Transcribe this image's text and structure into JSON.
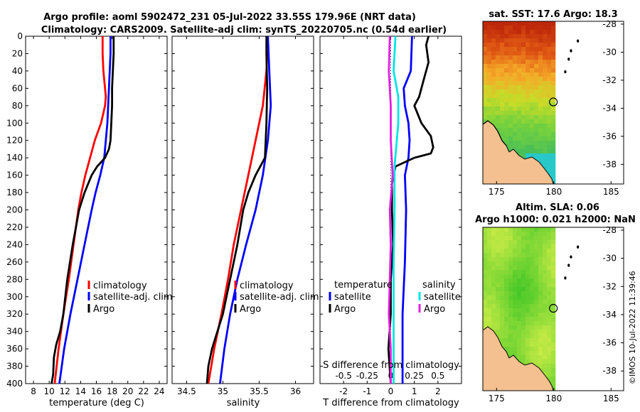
{
  "title_line1": "Argo profile: aoml 5902472_231 05-Jul-2022 33.55S 179.96E (NRT data)",
  "title_line2": "Climatology: CARS2009. Satellite-adj clim: synTS_20220705.nc (0.54d earlier)",
  "watermark": "©IMOS 10-Jul-2022 11:39:46",
  "depth_ticks": [
    "0",
    "20",
    "40",
    "60",
    "80",
    "100",
    "120",
    "140",
    "160",
    "180",
    "200",
    "220",
    "240",
    "260",
    "280",
    "300",
    "320",
    "340",
    "360",
    "380",
    "400"
  ],
  "colors": {
    "red": "#ff0000",
    "blue": "#0000ff",
    "black": "#000000",
    "cyan": "#00e5e5",
    "magenta": "#e020e0"
  },
  "chart_data": [
    {
      "type": "line",
      "id": "temperature",
      "xlabel": "temperature (deg C)",
      "ylabel": "depth",
      "xlim": [
        7,
        25
      ],
      "ylim": [
        400,
        0
      ],
      "xticks": [
        "8",
        "10",
        "12",
        "14",
        "16",
        "18",
        "20",
        "22",
        "24"
      ],
      "xtick_values": [
        8,
        10,
        12,
        14,
        16,
        18,
        20,
        22,
        24
      ],
      "legend": [
        "climatology",
        "satellite-adj. clim",
        "Argo"
      ],
      "series": [
        {
          "name": "climatology",
          "color": "red",
          "depth": [
            0,
            20,
            40,
            60,
            70,
            80,
            100,
            120,
            140,
            160,
            180,
            200,
            240,
            280,
            320,
            360,
            400
          ],
          "values": [
            16.8,
            16.8,
            16.9,
            17.1,
            17.2,
            17.1,
            16.6,
            15.8,
            15.2,
            14.6,
            14.1,
            13.7,
            13.1,
            12.5,
            11.8,
            11.2,
            10.7
          ]
        },
        {
          "name": "satellite-adj. clim",
          "color": "blue",
          "depth": [
            0,
            20,
            40,
            60,
            80,
            100,
            120,
            140,
            160,
            180,
            200,
            240,
            280,
            320,
            360,
            400
          ],
          "values": [
            17.8,
            17.8,
            17.7,
            17.6,
            17.5,
            17.4,
            17.2,
            17.0,
            16.5,
            15.9,
            15.4,
            14.5,
            13.6,
            12.7,
            11.9,
            11.3
          ]
        },
        {
          "name": "Argo",
          "color": "black",
          "depth": [
            0,
            20,
            40,
            60,
            80,
            100,
            120,
            130,
            140,
            150,
            160,
            180,
            200,
            240,
            280,
            320,
            340,
            355,
            370,
            390,
            400
          ],
          "values": [
            18.2,
            18.2,
            18.1,
            18.0,
            18.0,
            17.9,
            17.8,
            17.6,
            17.1,
            16.1,
            15.4,
            14.5,
            13.8,
            13.0,
            12.3,
            11.8,
            11.4,
            10.9,
            10.6,
            10.5,
            10.3
          ]
        }
      ]
    },
    {
      "type": "line",
      "id": "salinity",
      "xlabel": "salinity",
      "ylabel": "depth",
      "xlim": [
        34.3,
        36.25
      ],
      "ylim": [
        400,
        0
      ],
      "xticks": [
        "34.5",
        "35",
        "35.5",
        "36"
      ],
      "xtick_values": [
        34.5,
        35,
        35.5,
        36
      ],
      "legend": [
        "climatology",
        "satellite-adj. clim",
        "Argo"
      ],
      "series": [
        {
          "name": "climatology",
          "color": "red",
          "depth": [
            0,
            40,
            80,
            120,
            160,
            200,
            240,
            280,
            320,
            360,
            400
          ],
          "values": [
            35.62,
            35.6,
            35.55,
            35.45,
            35.35,
            35.25,
            35.15,
            35.07,
            34.98,
            34.88,
            34.8
          ]
        },
        {
          "name": "satellite-adj. clim",
          "color": "blue",
          "depth": [
            0,
            40,
            80,
            120,
            160,
            200,
            240,
            280,
            320,
            360,
            400
          ],
          "values": [
            35.62,
            35.64,
            35.66,
            35.62,
            35.55,
            35.45,
            35.32,
            35.2,
            35.1,
            35.02,
            34.96
          ]
        },
        {
          "name": "Argo",
          "color": "black",
          "depth": [
            0,
            20,
            60,
            100,
            140,
            160,
            180,
            200,
            240,
            280,
            320,
            360,
            380,
            400
          ],
          "values": [
            35.6,
            35.6,
            35.61,
            35.6,
            35.58,
            35.45,
            35.35,
            35.28,
            35.2,
            35.1,
            35.0,
            34.85,
            34.8,
            34.78
          ]
        }
      ]
    },
    {
      "type": "line",
      "id": "difference",
      "xlabel": "T difference from climatology",
      "xlabel_top": "S difference from climatology",
      "ylabel": "depth",
      "xlim": [
        -3,
        3
      ],
      "ylim": [
        400,
        0
      ],
      "xticks": [
        "-2",
        "-1",
        "0",
        "1",
        "2"
      ],
      "xtick_values": [
        -2,
        -1,
        0,
        1,
        2
      ],
      "s_xticks": [
        "-0.5",
        "-0.25",
        "0",
        "0.25",
        "0.5"
      ],
      "s_xtick_values": [
        -0.5,
        -0.25,
        0,
        0.25,
        0.5
      ],
      "legend_temperature": {
        "heading": "temperature",
        "items": [
          "satellite",
          "Argo"
        ]
      },
      "legend_salinity": {
        "heading": "salinity",
        "items": [
          "satellite",
          "Argo"
        ]
      },
      "series": [
        {
          "name": "T satellite",
          "color": "blue",
          "depth": [
            0,
            40,
            60,
            80,
            100,
            120,
            140,
            160,
            200,
            260,
            320,
            380,
            400
          ],
          "values": [
            0.9,
            0.85,
            0.55,
            0.6,
            0.75,
            0.8,
            0.75,
            0.6,
            0.65,
            0.6,
            0.5,
            0.5,
            0.5
          ]
        },
        {
          "name": "T Argo",
          "color": "black",
          "depth": [
            0,
            10,
            30,
            50,
            70,
            80,
            100,
            115,
            128,
            135,
            140,
            150,
            170,
            200,
            240,
            280,
            320,
            360,
            400
          ],
          "values": [
            1.6,
            1.5,
            1.6,
            1.4,
            1.2,
            1.0,
            1.3,
            1.7,
            1.8,
            1.7,
            1.0,
            0.2,
            0.05,
            0.05,
            0.1,
            0.0,
            0.0,
            -0.1,
            0.0
          ]
        },
        {
          "name": "S satellite",
          "color": "cyan",
          "depth": [
            0,
            40,
            70,
            100,
            150,
            200,
            260,
            320,
            380,
            400
          ],
          "values": [
            0.05,
            0.03,
            0.08,
            0.08,
            0.04,
            0.04,
            0.03,
            0.03,
            0.03,
            0.03
          ]
        },
        {
          "name": "S Argo",
          "color": "magenta",
          "depth": [
            0,
            40,
            80,
            120,
            160,
            200,
            240,
            280,
            320,
            360,
            400
          ],
          "values": [
            -0.01,
            -0.02,
            0.0,
            0.0,
            0.02,
            -0.01,
            0.0,
            -0.01,
            -0.02,
            0.0,
            0.0
          ]
        }
      ]
    },
    {
      "type": "heatmap",
      "id": "sst_map",
      "title": "sat. SST: 17.6 Argo: 18.3",
      "xlim": [
        173.8,
        186.1
      ],
      "ylim": [
        -39.4,
        -27.8
      ],
      "xticks": [
        "175",
        "180",
        "185"
      ],
      "xtick_values": [
        175,
        180,
        185
      ],
      "yticks": [
        "-28",
        "-30",
        "-32",
        "-34",
        "-36",
        "-38"
      ],
      "ytick_values": [
        -28,
        -30,
        -32,
        -34,
        -36,
        -38
      ],
      "data_extent_lon": [
        173.8,
        180
      ],
      "profile_location": {
        "lon": 179.96,
        "lat": -33.55
      },
      "islands": [
        {
          "lon": 182.1,
          "lat": -29.2
        },
        {
          "lon": 181.5,
          "lat": -29.9
        },
        {
          "lon": 181.3,
          "lat": -30.5
        },
        {
          "lon": 181.0,
          "lat": -31.4
        }
      ]
    },
    {
      "type": "heatmap",
      "id": "sla_map",
      "title_line1": "Altim. SLA: 0.06",
      "title_line2": "Argo h1000: 0.021 h2000: NaN",
      "xlim": [
        173.8,
        186.1
      ],
      "ylim": [
        -39.4,
        -27.8
      ],
      "xticks": [
        "175",
        "180",
        "185"
      ],
      "xtick_values": [
        175,
        180,
        185
      ],
      "yticks": [
        "-28",
        "-30",
        "-32",
        "-34",
        "-36",
        "-38"
      ],
      "ytick_values": [
        -28,
        -30,
        -32,
        -34,
        -36,
        -38
      ],
      "data_extent_lon": [
        173.8,
        180
      ],
      "profile_location": {
        "lon": 179.96,
        "lat": -33.55
      },
      "islands": [
        {
          "lon": 182.1,
          "lat": -29.2
        },
        {
          "lon": 181.5,
          "lat": -29.9
        },
        {
          "lon": 181.3,
          "lat": -30.5
        },
        {
          "lon": 181.0,
          "lat": -31.4
        }
      ]
    }
  ]
}
